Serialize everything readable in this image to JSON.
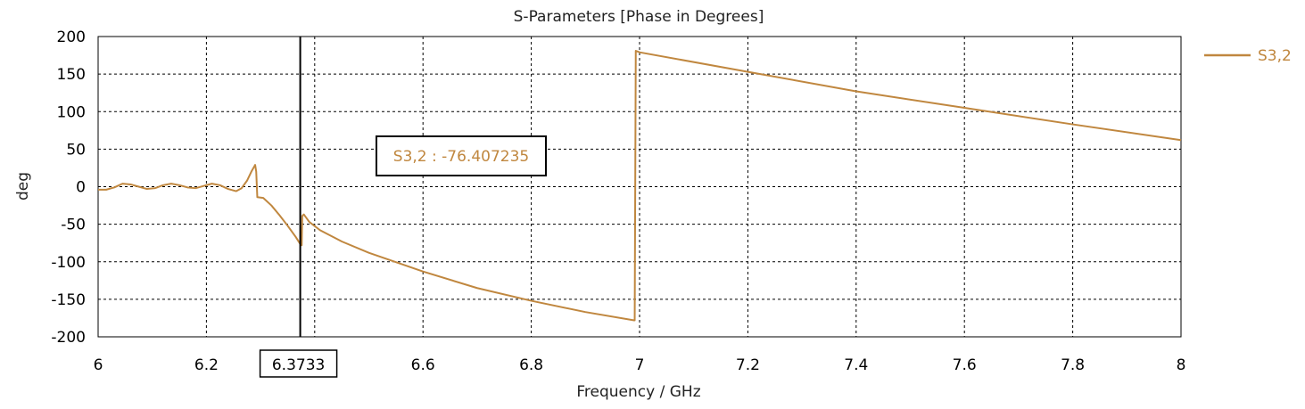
{
  "chart_data": {
    "type": "line",
    "title": "S-Parameters [Phase in Degrees]",
    "xlabel": "Frequency / GHz",
    "ylabel": "deg",
    "xlim": [
      6,
      8
    ],
    "ylim": [
      -200,
      200
    ],
    "x_ticks": [
      6,
      6.2,
      6.4,
      6.6,
      6.8,
      7,
      7.2,
      7.4,
      7.6,
      7.8,
      8
    ],
    "x_tick_labels": [
      "6",
      "6.2",
      "",
      "6.6",
      "6.8",
      "7",
      "7.2",
      "7.4",
      "7.6",
      "7.8",
      "8"
    ],
    "y_ticks": [
      200,
      150,
      100,
      50,
      0,
      -50,
      -100,
      -150,
      -200
    ],
    "y_tick_labels": [
      "200",
      "150",
      "100",
      "50",
      "0",
      "-50",
      "-100",
      "-150",
      "-200"
    ],
    "grid": true,
    "legend_position": "top-right, outside plot",
    "series": [
      {
        "name": "S3,2",
        "color": "#C0873F",
        "points": [
          [
            6.0,
            -4
          ],
          [
            6.015,
            -4
          ],
          [
            6.03,
            -1
          ],
          [
            6.045,
            4
          ],
          [
            6.06,
            3
          ],
          [
            6.075,
            0
          ],
          [
            6.09,
            -3
          ],
          [
            6.105,
            -2
          ],
          [
            6.12,
            2
          ],
          [
            6.135,
            4
          ],
          [
            6.15,
            2
          ],
          [
            6.165,
            -1
          ],
          [
            6.18,
            -2
          ],
          [
            6.195,
            1
          ],
          [
            6.21,
            4
          ],
          [
            6.225,
            2
          ],
          [
            6.24,
            -3
          ],
          [
            6.255,
            -6
          ],
          [
            6.265,
            -2
          ],
          [
            6.275,
            8
          ],
          [
            6.283,
            20
          ],
          [
            6.29,
            29
          ],
          [
            6.292,
            20
          ],
          [
            6.294,
            -14
          ],
          [
            6.305,
            -15
          ],
          [
            6.32,
            -25
          ],
          [
            6.335,
            -38
          ],
          [
            6.35,
            -52
          ],
          [
            6.365,
            -67
          ],
          [
            6.373,
            -76
          ],
          [
            6.376,
            -78
          ],
          [
            6.377,
            -39
          ],
          [
            6.38,
            -37
          ],
          [
            6.39,
            -47
          ],
          [
            6.41,
            -58
          ],
          [
            6.45,
            -73
          ],
          [
            6.5,
            -88
          ],
          [
            6.6,
            -113
          ],
          [
            6.7,
            -135
          ],
          [
            6.8,
            -152
          ],
          [
            6.9,
            -167
          ],
          [
            6.99,
            -178
          ],
          [
            6.991,
            -178
          ],
          [
            6.993,
            181
          ],
          [
            7.0,
            179
          ],
          [
            7.2,
            153
          ],
          [
            7.4,
            127
          ],
          [
            7.6,
            105
          ],
          [
            7.8,
            83
          ],
          [
            8.0,
            62
          ]
        ]
      }
    ],
    "marker": {
      "x": 6.3733,
      "label": "6.3733",
      "readout": "S3,2 : -76.407235"
    }
  },
  "colors": {
    "series": "#C0873F",
    "marker_line": "#000000",
    "grid": "#000000"
  }
}
